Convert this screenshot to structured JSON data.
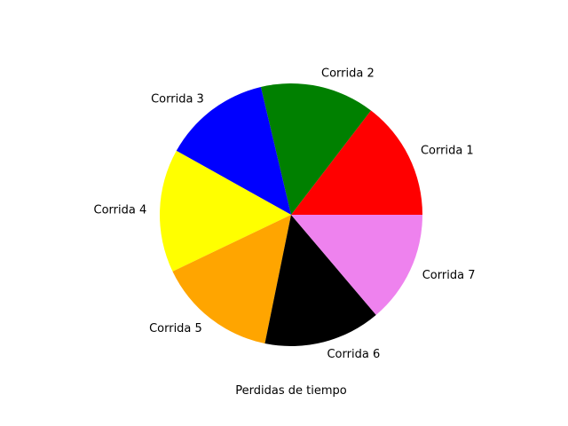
{
  "chart_data": {
    "type": "pie",
    "categories": [
      "Corrida 1",
      "Corrida 2",
      "Corrida 3",
      "Corrida 4",
      "Corrida 5",
      "Corrida 6",
      "Corrida 7"
    ],
    "values": [
      14.6,
      14.1,
      13.2,
      15.2,
      14.7,
      14.4,
      13.8
    ],
    "colors": [
      "#ff0000",
      "#008000",
      "#0000ff",
      "#ffff00",
      "#ffa500",
      "#000000",
      "#ee82ee"
    ],
    "start_angle_deg": 0,
    "direction": "counterclockwise",
    "xlabel": "Perdidas de tiempo",
    "title": "",
    "legend": false
  }
}
